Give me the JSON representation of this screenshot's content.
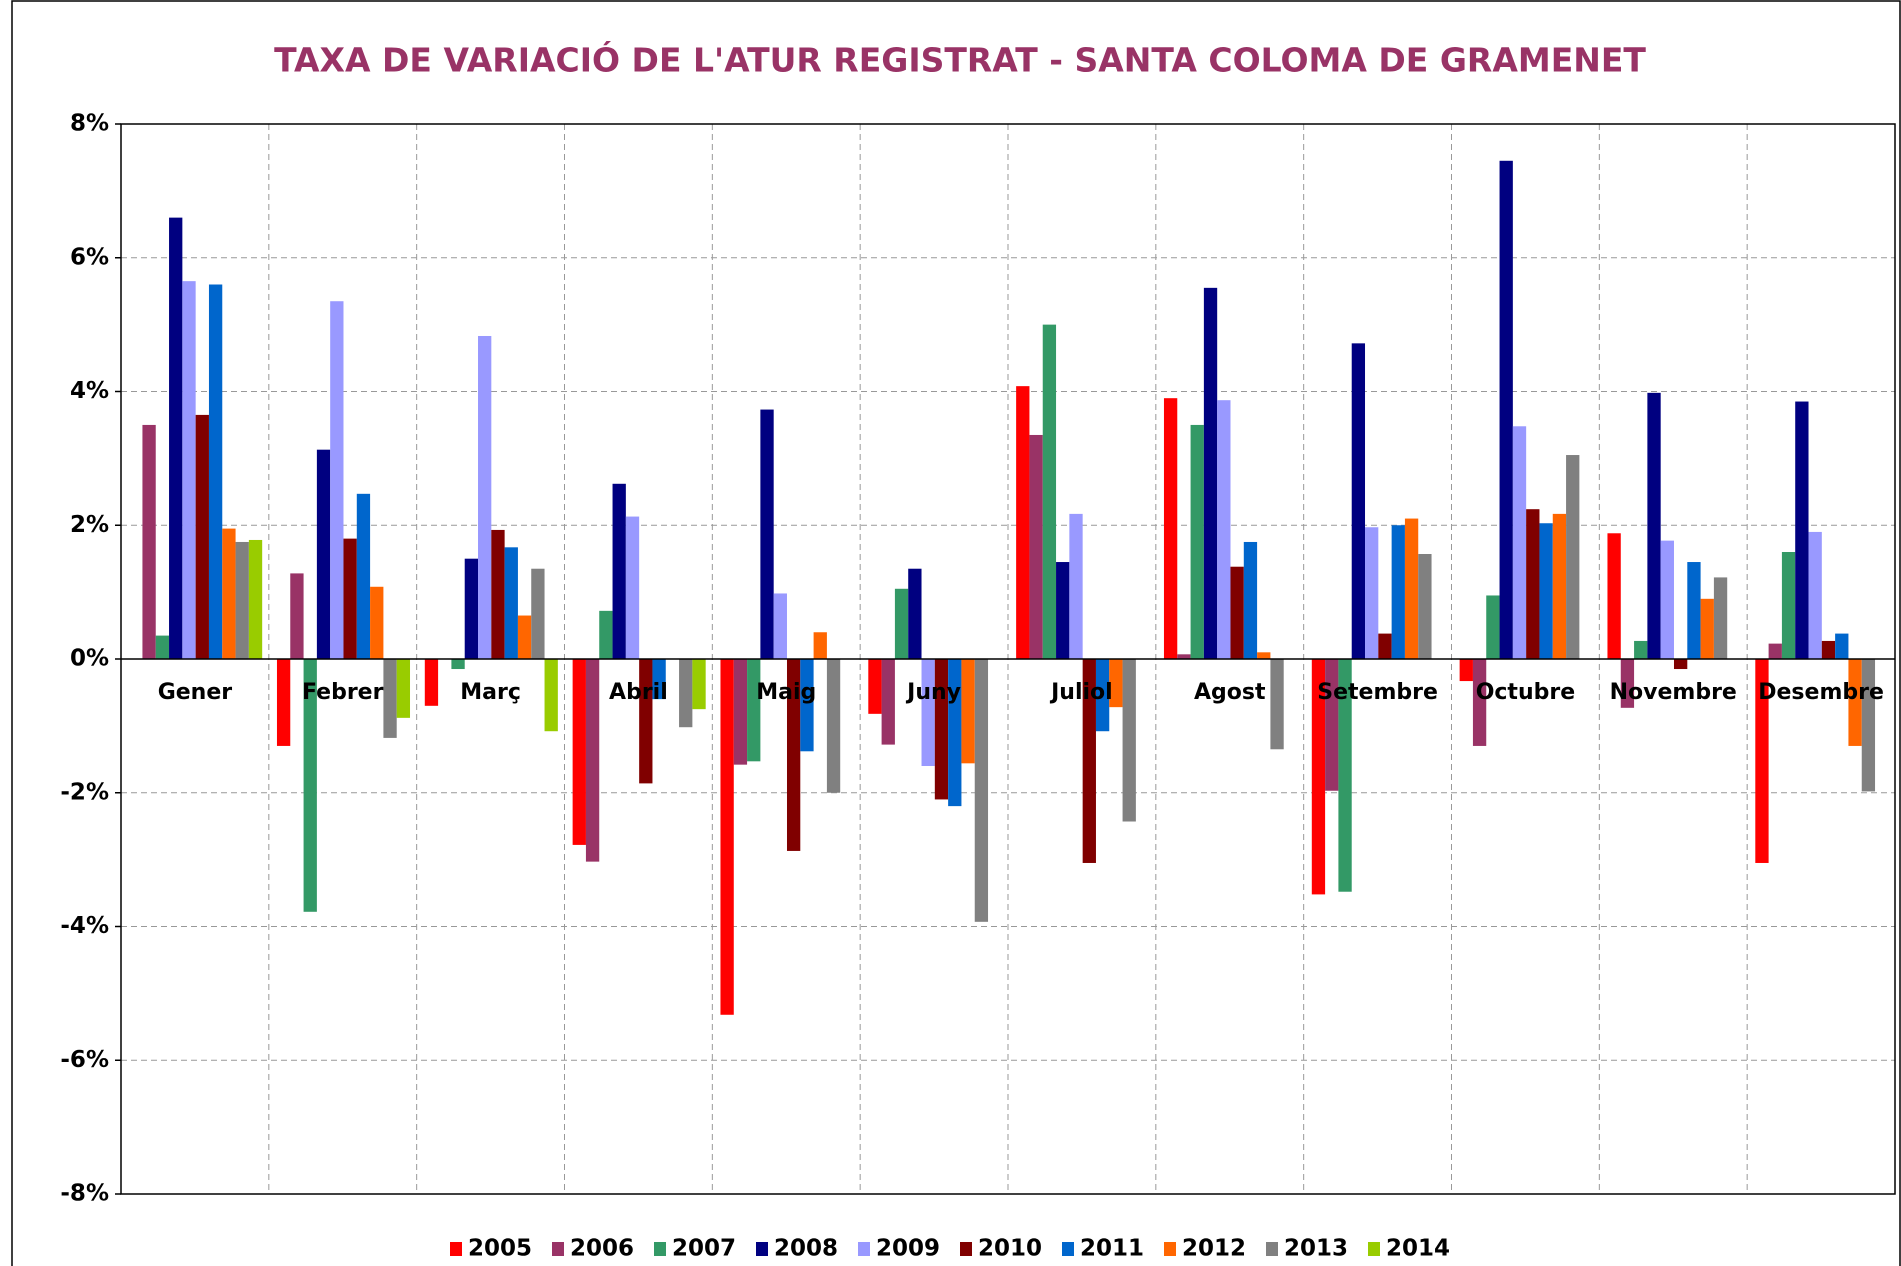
{
  "chart_data": {
    "type": "bar",
    "title": "TAXA DE VARIACIÓ DE L'ATUR REGISTRAT - SANTA COLOMA DE GRAMENET",
    "categories": [
      "Gener",
      "Febrer",
      "Març",
      "Abril",
      "Maig",
      "Juny",
      "Juliol",
      "Agost",
      "Setembre",
      "Octubre",
      "Novembre",
      "Desembre"
    ],
    "series": [
      {
        "name": "2005",
        "color": "#ff0000",
        "values": [
          null,
          -1.3,
          -0.7,
          -2.78,
          -5.32,
          -0.82,
          4.08,
          3.9,
          -3.52,
          -0.33,
          1.88,
          -3.05
        ]
      },
      {
        "name": "2006",
        "color": "#993366",
        "values": [
          3.5,
          1.28,
          null,
          -3.03,
          -1.58,
          -1.28,
          3.35,
          0.07,
          -1.97,
          -1.3,
          -0.73,
          0.23
        ]
      },
      {
        "name": "2007",
        "color": "#339966",
        "values": [
          0.35,
          -3.78,
          -0.15,
          0.72,
          -1.53,
          1.05,
          5.0,
          3.5,
          -3.48,
          0.95,
          0.27,
          1.6
        ]
      },
      {
        "name": "2008",
        "color": "#000080",
        "values": [
          6.6,
          3.13,
          1.5,
          2.62,
          3.73,
          1.35,
          1.45,
          5.55,
          4.72,
          7.45,
          3.98,
          3.85
        ]
      },
      {
        "name": "2009",
        "color": "#9999ff",
        "values": [
          5.65,
          5.35,
          4.83,
          2.13,
          0.98,
          -1.6,
          2.17,
          3.87,
          1.97,
          3.48,
          1.77,
          1.9
        ]
      },
      {
        "name": "2010",
        "color": "#800000",
        "values": [
          3.65,
          1.8,
          1.93,
          -1.86,
          -2.87,
          -2.1,
          -3.05,
          1.38,
          0.38,
          2.24,
          -0.15,
          0.27
        ]
      },
      {
        "name": "2011",
        "color": "#0066cc",
        "values": [
          5.6,
          2.47,
          1.67,
          -0.6,
          -1.38,
          -2.2,
          -1.08,
          1.75,
          2.0,
          2.03,
          1.45,
          0.38
        ]
      },
      {
        "name": "2012",
        "color": "#ff6600",
        "values": [
          1.95,
          1.08,
          0.65,
          null,
          0.4,
          -1.56,
          -0.72,
          0.1,
          2.1,
          2.17,
          0.9,
          -1.3
        ]
      },
      {
        "name": "2013",
        "color": "#808080",
        "values": [
          1.75,
          -1.18,
          1.35,
          -1.02,
          -2.0,
          -3.93,
          -2.43,
          -1.35,
          1.57,
          3.05,
          1.22,
          -1.98
        ]
      },
      {
        "name": "2014",
        "color": "#99cc00",
        "values": [
          1.78,
          -0.88,
          -1.08,
          -0.75,
          null,
          null,
          null,
          null,
          null,
          null,
          null,
          null
        ]
      }
    ],
    "ylim": [
      -8,
      8
    ],
    "yticks": [
      {
        "value": -8,
        "label": "-8%"
      },
      {
        "value": -6,
        "label": "-6%"
      },
      {
        "value": -4,
        "label": "-4%"
      },
      {
        "value": -2,
        "label": "-2%"
      },
      {
        "value": 0,
        "label": "0%"
      },
      {
        "value": 2,
        "label": "2%"
      },
      {
        "value": 4,
        "label": "4%"
      },
      {
        "value": 6,
        "label": "6%"
      },
      {
        "value": 8,
        "label": "8%"
      }
    ],
    "grid": true,
    "legend": "bottom"
  }
}
